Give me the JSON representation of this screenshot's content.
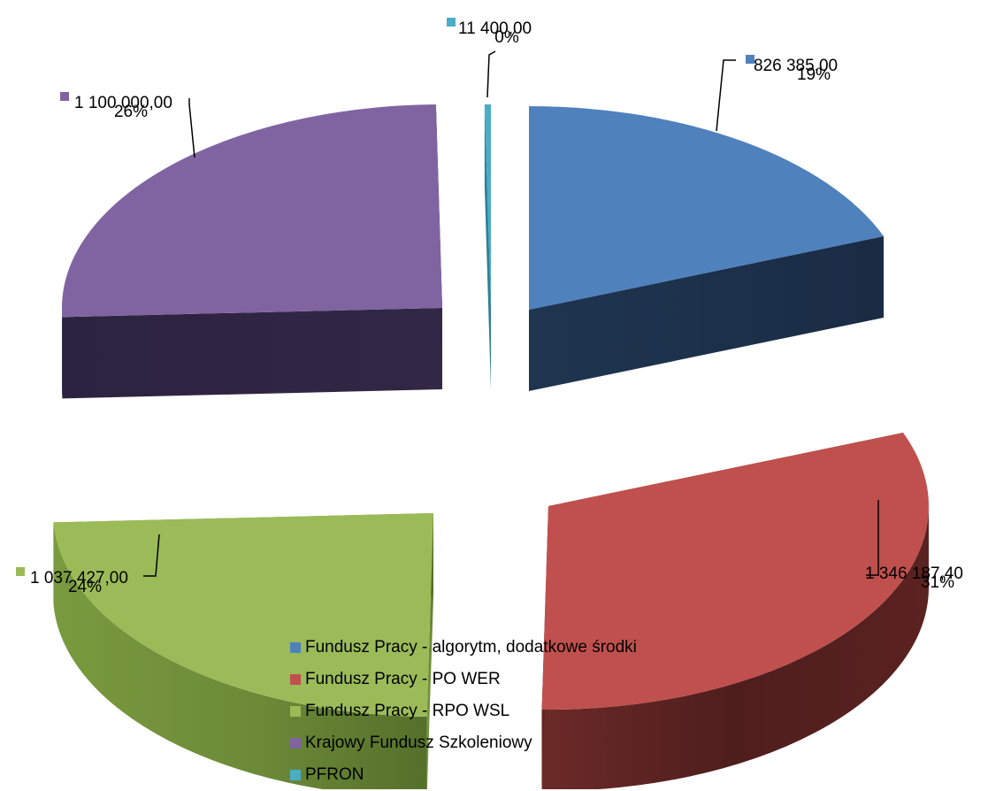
{
  "chart_data": {
    "type": "pie",
    "title": "",
    "series": [
      {
        "name": "Fundusz Pracy - algorytm, dodatkowe środki",
        "value": 826385.0,
        "value_label": "826 385,00",
        "percent_label": "19%",
        "color": "#4F81BD"
      },
      {
        "name": "Fundusz Pracy - PO WER",
        "value": 1346187.4,
        "value_label": "1 346 187,40",
        "percent_label": "31%",
        "color": "#C0504D"
      },
      {
        "name": "Fundusz Pracy - RPO WSL",
        "value": 1037427.0,
        "value_label": "1 037 427,00",
        "percent_label": "24%",
        "color": "#9BBB59"
      },
      {
        "name": "Krajowy Fundusz Szkoleniowy",
        "value": 1100000.0,
        "value_label": "1 100 000,00",
        "percent_label": "26%",
        "color": "#8064A2"
      },
      {
        "name": "PFRON",
        "value": 11400.0,
        "value_label": "11 400,00",
        "percent_label": "0%",
        "color": "#4BACC6"
      }
    ],
    "style": "3d exploded pie",
    "legend_position": "bottom",
    "data_labels": "value and percent with leader lines"
  }
}
